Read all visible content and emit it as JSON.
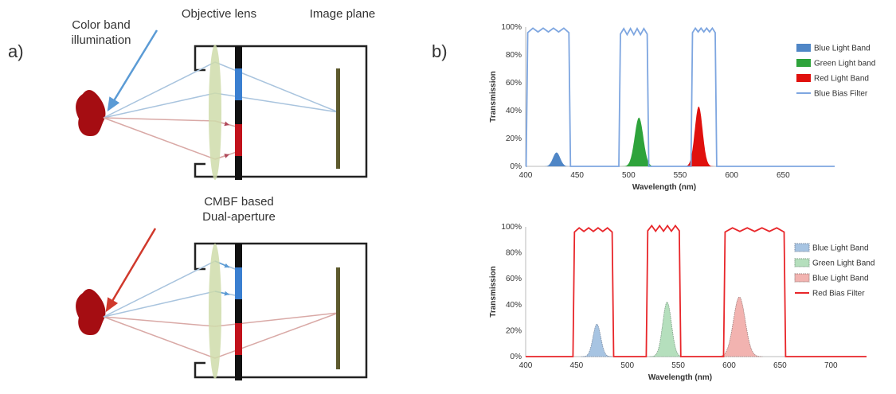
{
  "panel_a": {
    "label": "a)",
    "top": {
      "label_color_band": [
        "Color band",
        "illumination"
      ],
      "label_objective": "Objective lens",
      "label_image_plane": "Image plane"
    },
    "bottom": {
      "label_cmbf": [
        "CMBF based",
        "Dual-aperture"
      ]
    },
    "colors": {
      "blob": "#a50d12",
      "lens": "#cfdcaa",
      "blue_ray": "#a9c4de",
      "red_ray": "#d9a9a6",
      "blue_arrow": "#5b9bd5",
      "red_arrow": "#d0392c",
      "blue_filter": "#3a7fd0",
      "red_filter": "#c1121b",
      "sensor": "#5d5a2e"
    }
  },
  "panel_b": {
    "label": "b)"
  },
  "chart_data": [
    {
      "type": "area",
      "xlabel": "Wavelength (nm)",
      "ylabel": "Transmission",
      "xlim": [
        400,
        700
      ],
      "ylim": [
        0,
        100
      ],
      "xticks": [
        "400",
        "450",
        "500",
        "550",
        "600",
        "650"
      ],
      "yticks": [
        "0%",
        "20%",
        "40%",
        "60%",
        "80%",
        "100%"
      ],
      "legend_position": "right",
      "series": [
        {
          "name": "Blue Light Band",
          "kind": "gaussian",
          "center": 430,
          "sigma": 3.5,
          "peak": 10,
          "color": "#4f86c6"
        },
        {
          "name": "Green Light band",
          "kind": "gaussian",
          "center": 510,
          "sigma": 4.2,
          "peak": 35,
          "color": "#2ea33b"
        },
        {
          "name": "Red Light Band",
          "kind": "gaussian",
          "center": 568,
          "sigma": 3.8,
          "peak": 43,
          "color": "#e0100d"
        },
        {
          "name": "Blue Bias Filter",
          "kind": "bandpass",
          "color": "#7ea6e0",
          "bands": [
            [
              402,
              442,
              98
            ],
            [
              492,
              518,
              97
            ],
            [
              562,
              584,
              98
            ]
          ]
        }
      ]
    },
    {
      "type": "area",
      "xlabel": "Wavelength (nm)",
      "ylabel": "Transmission",
      "xlim": [
        400,
        735
      ],
      "ylim": [
        0,
        100
      ],
      "xticks": [
        "400",
        "450",
        "500",
        "550",
        "600",
        "650",
        "700"
      ],
      "yticks": [
        "0%",
        "20%",
        "40%",
        "60%",
        "80%",
        "100%"
      ],
      "legend_position": "right",
      "series": [
        {
          "name": "Blue Light Band",
          "kind": "gaussian",
          "center": 470,
          "sigma": 3.8,
          "peak": 25,
          "color": "#a7c4e2",
          "edge": "#7a8aa0"
        },
        {
          "name": "Green Light Band",
          "kind": "gaussian",
          "center": 539,
          "sigma": 4.3,
          "peak": 42,
          "color": "#b5dfbd",
          "edge": "#7a9a82"
        },
        {
          "name": "Blue Light Band",
          "kind": "gaussian",
          "center": 610,
          "sigma": 5.8,
          "peak": 46,
          "color": "#f2b3b0",
          "edge": "#9a7c7a"
        },
        {
          "name": "Red Bias Filter",
          "kind": "bandpass",
          "color": "#e8262a",
          "bands": [
            [
              448,
              485,
              98
            ],
            [
              520,
              551,
              99
            ],
            [
              596,
              654,
              98
            ]
          ]
        }
      ]
    }
  ]
}
